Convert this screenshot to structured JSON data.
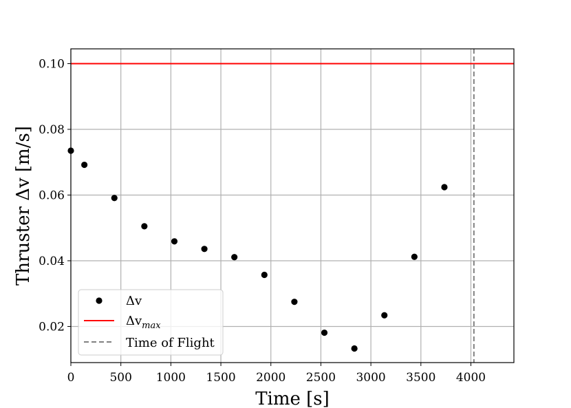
{
  "chart_data": {
    "type": "scatter",
    "xlabel": "Time [s]",
    "ylabel": "Thruster Δv [m/s]",
    "xlim": [
      0,
      4430
    ],
    "ylim": [
      0.009,
      0.1045
    ],
    "grid": true,
    "legend_position": "bottom-left",
    "x_ticks": [
      0,
      500,
      1000,
      1500,
      2000,
      2500,
      3000,
      3500,
      4000
    ],
    "x_tick_labels": [
      "0",
      "500",
      "1000",
      "1500",
      "2000",
      "2500",
      "3000",
      "3500",
      "4000"
    ],
    "y_ticks": [
      0.02,
      0.04,
      0.06,
      0.08,
      0.1
    ],
    "y_tick_labels": [
      "0.02",
      "0.04",
      "0.06",
      "0.08",
      "0.10"
    ],
    "series": [
      {
        "name": "Δv",
        "style": "points",
        "color": "#000000",
        "x": [
          0,
          135,
          435,
          735,
          1035,
          1335,
          1635,
          1935,
          2235,
          2535,
          2835,
          3135,
          3435,
          3735
        ],
        "y": [
          0.0735,
          0.0692,
          0.0591,
          0.0505,
          0.0459,
          0.0436,
          0.0411,
          0.0357,
          0.0275,
          0.0181,
          0.0133,
          0.0234,
          0.0412,
          0.0624
        ]
      },
      {
        "name": "Δv_max",
        "legend_main": "Δv",
        "legend_sub": "max",
        "style": "hline",
        "color": "#ff0000",
        "y": 0.1
      },
      {
        "name": "Time of Flight",
        "style": "vline-dashed",
        "color": "#808080",
        "x": 4030
      }
    ],
    "colors": {
      "grid": "#b0b0b0",
      "axes": "#000000",
      "legend_border": "#cccccc"
    }
  }
}
